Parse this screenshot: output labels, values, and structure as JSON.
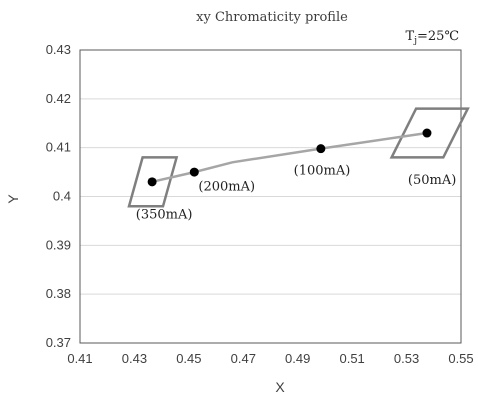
{
  "chart_data": {
    "type": "scatter",
    "title": "xy Chromaticity profile",
    "xlabel": "X",
    "ylabel": "Y",
    "xlim": [
      0.41,
      0.55
    ],
    "ylim": [
      0.37,
      0.43
    ],
    "x_ticks": [
      "0.41",
      "0.43",
      "0.45",
      "0.47",
      "0.49",
      "0.51",
      "0.53",
      "0.55"
    ],
    "y_ticks": [
      "0.43",
      "0.42",
      "0.41",
      "0.4",
      "0.39",
      "0.38",
      "0.37"
    ],
    "grid": true,
    "annotation_tj": {
      "base": "T",
      "sub": "j",
      "rest": "=25℃"
    },
    "line_color": "#a6a6a6",
    "marker_color": "#000000",
    "box_color": "#7f7f7f",
    "series": [
      {
        "values": [
          {
            "x": 0.4365,
            "y": 0.403
          },
          {
            "x": 0.452,
            "y": 0.405
          },
          {
            "x": 0.466,
            "y": 0.407
          },
          {
            "x": 0.4985,
            "y": 0.4098
          },
          {
            "x": 0.5375,
            "y": 0.413
          }
        ]
      }
    ],
    "markers": [
      {
        "x": 0.4365,
        "y": 0.403
      },
      {
        "x": 0.452,
        "y": 0.405
      },
      {
        "x": 0.4985,
        "y": 0.4098
      },
      {
        "x": 0.5375,
        "y": 0.413
      }
    ],
    "labels": [
      {
        "text": "(350mA)",
        "x": 0.4305,
        "y": 0.3955
      },
      {
        "text": "(200mA)",
        "x": 0.4535,
        "y": 0.4012
      },
      {
        "text": "(100mA)",
        "x": 0.4885,
        "y": 0.4045
      },
      {
        "text": "(50mA)",
        "x": 0.5305,
        "y": 0.4026
      }
    ],
    "boxes": [
      [
        [
          0.433,
          0.408
        ],
        [
          0.4455,
          0.408
        ],
        [
          0.4405,
          0.398
        ],
        [
          0.428,
          0.398
        ]
      ],
      [
        [
          0.5335,
          0.418
        ],
        [
          0.5525,
          0.418
        ],
        [
          0.5435,
          0.408
        ],
        [
          0.5245,
          0.408
        ]
      ]
    ]
  }
}
